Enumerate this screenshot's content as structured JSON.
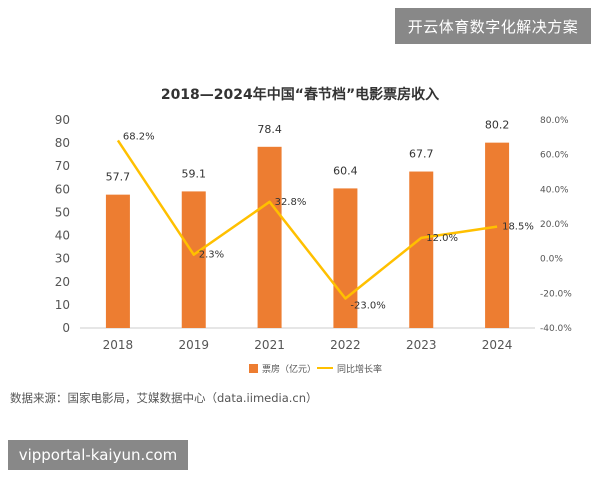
{
  "overlay": {
    "top_banner": "开云体育数字化解决方案",
    "bottom_banner": "vipportal-kaiyun.com"
  },
  "source_text": "数据来源：国家电影局，艾媒数据中心（data.iimedia.cn）",
  "colors": {
    "bar": "#ED7D31",
    "line": "#FFC000",
    "axis": "#cccccc",
    "text": "#555555"
  },
  "chart_data": {
    "type": "bar",
    "title": "2018—2024年中国“春节档”电影票房收入",
    "categories": [
      "2018",
      "2019",
      "2021",
      "2022",
      "2023",
      "2024"
    ],
    "series": [
      {
        "name": "票房（亿元）",
        "type": "bar",
        "values": [
          57.7,
          59.1,
          78.4,
          60.4,
          67.7,
          80.2
        ],
        "labels": [
          "57.7",
          "59.1",
          "78.4",
          "60.4",
          "67.7",
          "80.2"
        ]
      },
      {
        "name": "同比增长率",
        "type": "line",
        "axis": "right",
        "values": [
          68.2,
          2.3,
          32.8,
          -23.0,
          12.0,
          18.5
        ],
        "labels": [
          "68.2%",
          "2.3%",
          "32.8%",
          "-23.0%",
          "12.0%",
          "18.5%"
        ]
      }
    ],
    "ylim": [
      0,
      90
    ],
    "yticks": [
      "0",
      "10",
      "20",
      "30",
      "40",
      "50",
      "60",
      "70",
      "80",
      "90"
    ],
    "y2lim": [
      -40,
      80
    ],
    "y2ticks": [
      "-40.0%",
      "-20.0%",
      "0.0%",
      "20.0%",
      "40.0%",
      "60.0%",
      "80.0%"
    ],
    "legend_position": "bottom-center",
    "grid": false
  }
}
